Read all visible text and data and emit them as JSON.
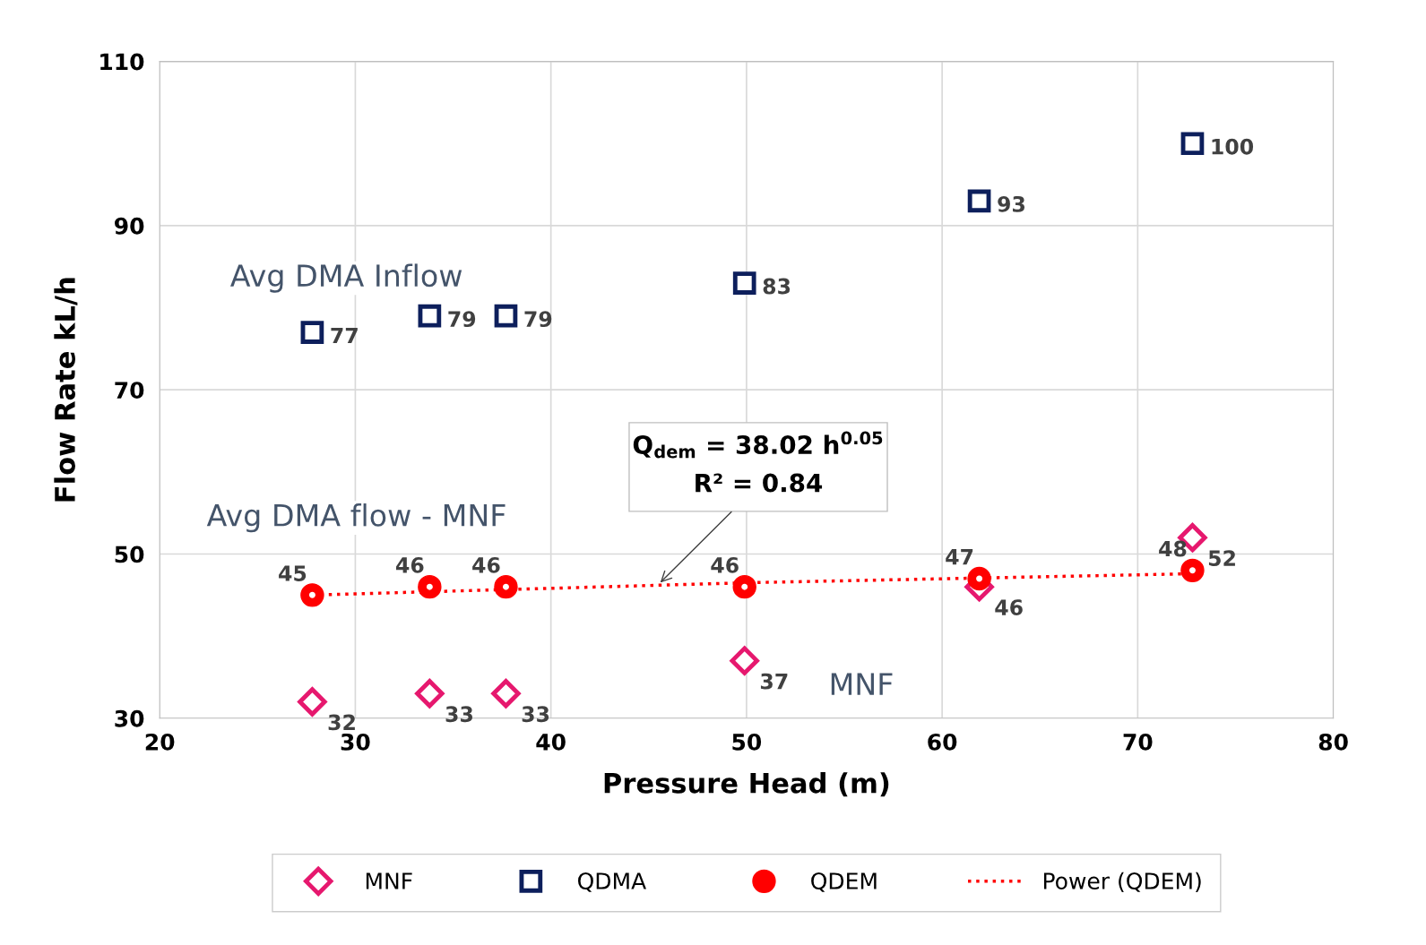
{
  "chart_data": {
    "type": "scatter",
    "xlabel": "Pressure Head (m)",
    "ylabel": "Flow Rate kL/h",
    "xlim": [
      20,
      80
    ],
    "xticks": [
      20,
      30,
      40,
      50,
      60,
      70,
      80
    ],
    "ylim": [
      30,
      110
    ],
    "yticks": [
      30,
      50,
      70,
      90,
      110
    ],
    "grid": true,
    "legend": "bottom",
    "series": [
      {
        "name": "MNF",
        "marker": "diamond",
        "color": "#e6186e",
        "x": [
          27.8,
          33.8,
          37.7,
          49.9,
          61.9,
          72.8
        ],
        "values": [
          32,
          33,
          33,
          37,
          46,
          52
        ],
        "value_labels": [
          "32",
          "33",
          "33",
          "37",
          "46",
          "52"
        ]
      },
      {
        "name": "QDMA",
        "marker": "square",
        "color": "#0d1f5c",
        "x": [
          27.8,
          33.8,
          37.7,
          49.9,
          61.9,
          72.8
        ],
        "values": [
          77,
          79,
          79,
          83,
          93,
          100
        ],
        "value_labels": [
          "77",
          "79",
          "79",
          "83",
          "93",
          "100"
        ]
      },
      {
        "name": "QDEM",
        "marker": "circle",
        "color": "#ff0000",
        "x": [
          27.8,
          33.8,
          37.7,
          49.9,
          61.9,
          72.8
        ],
        "values": [
          45,
          46,
          46,
          46,
          47,
          48
        ],
        "value_labels": [
          "45",
          "46",
          "46",
          "46",
          "47",
          "48"
        ]
      },
      {
        "name": "Power (QDEM)",
        "type": "line",
        "line_style": "dotted",
        "marker": "none",
        "color": "#ff0000",
        "x": [
          27.8,
          50,
          72.8
        ],
        "values": [
          45.0,
          46.5,
          47.6
        ]
      }
    ],
    "annotations": [
      "Avg DMA Inflow",
      "Avg DMA flow - MNF",
      "MNF",
      "Q$_{dem}$ = 38.02 h$^{0.05}$",
      {
        "text": "R² = 0.84",
        "x": 45.5,
        "y": 46.3
      }
    ]
  }
}
